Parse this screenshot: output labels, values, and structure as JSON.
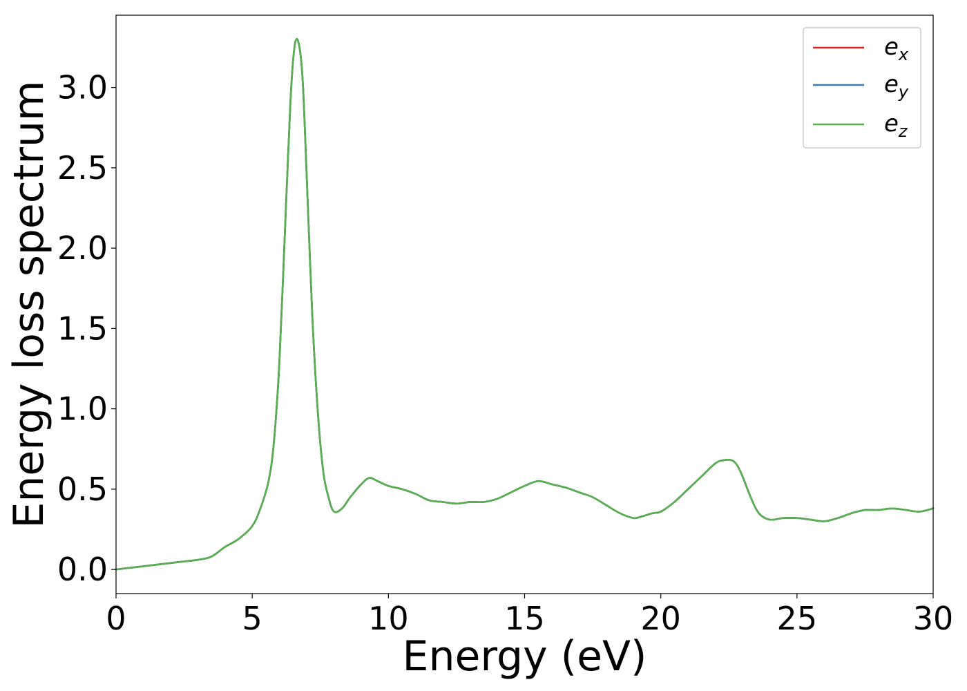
{
  "chart_data": {
    "type": "line",
    "xlabel": "Energy (eV)",
    "ylabel": "Energy loss spectrum",
    "xlim": [
      0,
      30
    ],
    "ylim": [
      -0.15,
      3.45
    ],
    "xticks": [
      0,
      5,
      10,
      15,
      20,
      25,
      30
    ],
    "xtick_labels": [
      "0",
      "5",
      "10",
      "15",
      "20",
      "25",
      "30"
    ],
    "yticks": [
      0.0,
      0.5,
      1.0,
      1.5,
      2.0,
      2.5,
      3.0
    ],
    "ytick_labels": [
      "0.0",
      "0.5",
      "1.0",
      "1.5",
      "2.0",
      "2.5",
      "3.0"
    ],
    "grid": false,
    "legend_position": "upper-right",
    "x": [
      0,
      1,
      2,
      2.5,
      3,
      3.5,
      4,
      4.5,
      5,
      5.3,
      5.6,
      5.8,
      6.0,
      6.2,
      6.4,
      6.55,
      6.7,
      6.85,
      7.0,
      7.2,
      7.4,
      7.6,
      7.8,
      8.0,
      8.3,
      8.6,
      9.0,
      9.3,
      9.6,
      10,
      10.5,
      11,
      11.5,
      12,
      12.5,
      13,
      13.5,
      14,
      14.5,
      15,
      15.5,
      16,
      16.5,
      17,
      17.5,
      18,
      18.5,
      19,
      19.3,
      19.7,
      20,
      20.5,
      21,
      21.5,
      22,
      22.3,
      22.6,
      22.8,
      23,
      23.3,
      23.6,
      24,
      24.5,
      25,
      25.5,
      26,
      26.5,
      27,
      27.5,
      28,
      28.5,
      29,
      29.5,
      30
    ],
    "series": [
      {
        "name_base": "e",
        "name_sub": "x",
        "color": "#d62728",
        "values": [
          0.0,
          0.02,
          0.04,
          0.05,
          0.06,
          0.08,
          0.14,
          0.19,
          0.27,
          0.38,
          0.55,
          0.8,
          1.3,
          2.1,
          2.9,
          3.25,
          3.28,
          3.05,
          2.45,
          1.6,
          1.0,
          0.62,
          0.45,
          0.36,
          0.38,
          0.45,
          0.53,
          0.57,
          0.55,
          0.52,
          0.5,
          0.47,
          0.43,
          0.42,
          0.41,
          0.42,
          0.42,
          0.44,
          0.48,
          0.52,
          0.55,
          0.53,
          0.51,
          0.48,
          0.45,
          0.4,
          0.35,
          0.32,
          0.33,
          0.35,
          0.36,
          0.42,
          0.5,
          0.58,
          0.66,
          0.68,
          0.68,
          0.65,
          0.58,
          0.45,
          0.35,
          0.31,
          0.32,
          0.32,
          0.31,
          0.3,
          0.32,
          0.35,
          0.37,
          0.37,
          0.38,
          0.37,
          0.36,
          0.38
        ]
      },
      {
        "name_base": "e",
        "name_sub": "y",
        "color": "#3a7bb0",
        "values": [
          0.0,
          0.02,
          0.04,
          0.05,
          0.06,
          0.08,
          0.14,
          0.19,
          0.27,
          0.38,
          0.55,
          0.8,
          1.3,
          2.1,
          2.9,
          3.25,
          3.28,
          3.05,
          2.45,
          1.6,
          1.0,
          0.62,
          0.45,
          0.36,
          0.38,
          0.45,
          0.53,
          0.57,
          0.55,
          0.52,
          0.5,
          0.47,
          0.43,
          0.42,
          0.41,
          0.42,
          0.42,
          0.44,
          0.48,
          0.52,
          0.55,
          0.53,
          0.51,
          0.48,
          0.45,
          0.4,
          0.35,
          0.32,
          0.33,
          0.35,
          0.36,
          0.42,
          0.5,
          0.58,
          0.66,
          0.68,
          0.68,
          0.65,
          0.58,
          0.45,
          0.35,
          0.31,
          0.32,
          0.32,
          0.31,
          0.3,
          0.32,
          0.35,
          0.37,
          0.37,
          0.38,
          0.37,
          0.36,
          0.38
        ]
      },
      {
        "name_base": "e",
        "name_sub": "z",
        "color": "#5aae52",
        "values": [
          0.0,
          0.02,
          0.04,
          0.05,
          0.06,
          0.08,
          0.14,
          0.19,
          0.27,
          0.38,
          0.55,
          0.8,
          1.3,
          2.1,
          2.9,
          3.25,
          3.28,
          3.05,
          2.45,
          1.6,
          1.0,
          0.62,
          0.45,
          0.36,
          0.38,
          0.45,
          0.53,
          0.57,
          0.55,
          0.52,
          0.5,
          0.47,
          0.43,
          0.42,
          0.41,
          0.42,
          0.42,
          0.44,
          0.48,
          0.52,
          0.55,
          0.53,
          0.51,
          0.48,
          0.45,
          0.4,
          0.35,
          0.32,
          0.33,
          0.35,
          0.36,
          0.42,
          0.5,
          0.58,
          0.66,
          0.68,
          0.68,
          0.65,
          0.58,
          0.45,
          0.35,
          0.31,
          0.32,
          0.32,
          0.31,
          0.3,
          0.32,
          0.35,
          0.37,
          0.37,
          0.38,
          0.37,
          0.36,
          0.38
        ]
      }
    ]
  }
}
